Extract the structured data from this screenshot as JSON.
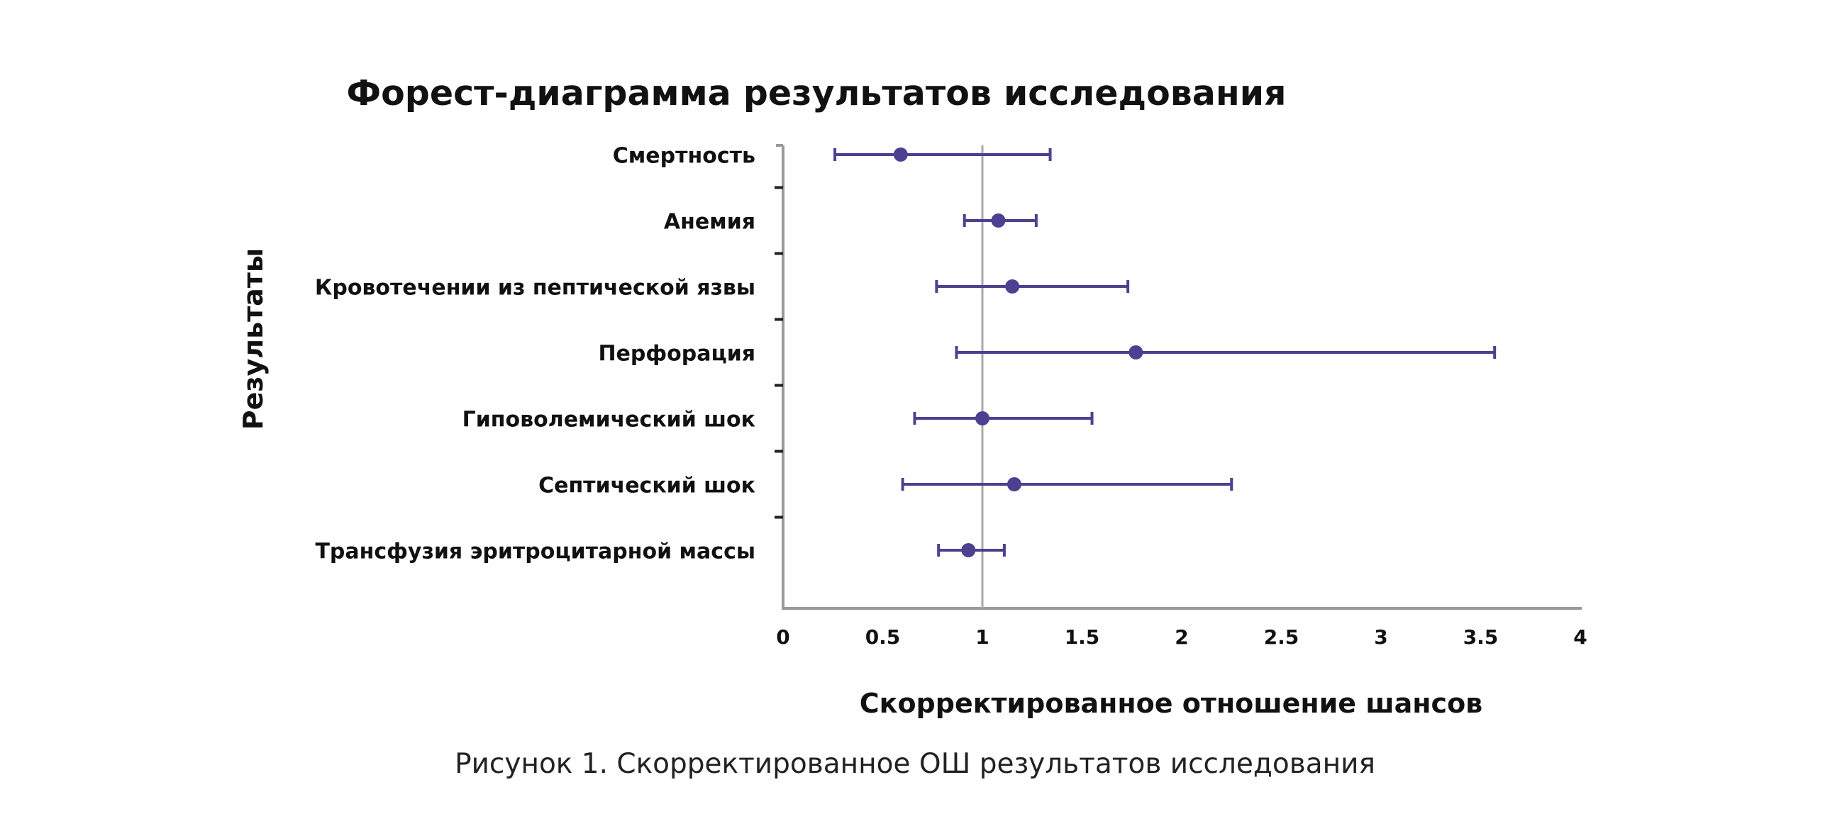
{
  "chart_data": {
    "type": "forest",
    "title": "Форест-диаграмма результатов исследования",
    "xlabel": "Скорректированное отношение шансов",
    "ylabel": "Результаты",
    "xlim": [
      0,
      4
    ],
    "xticks": [
      0,
      0.5,
      1,
      1.5,
      2,
      2.5,
      3,
      3.5,
      4
    ],
    "xtick_labels": [
      "0",
      "0.5",
      "1",
      "1.5",
      "2",
      "2.5",
      "3",
      "3.5",
      "4"
    ],
    "reference_line": 1,
    "grid": false,
    "color": "#4e4090",
    "reference_color": "#aaaaaa",
    "rows": [
      {
        "label": "Смертность",
        "or": 0.59,
        "ci_low": 0.26,
        "ci_high": 1.34
      },
      {
        "label": "Анемия",
        "or": 1.08,
        "ci_low": 0.91,
        "ci_high": 1.27
      },
      {
        "label": "Кровотечении из пептической язвы",
        "or": 1.15,
        "ci_low": 0.77,
        "ci_high": 1.73
      },
      {
        "label": "Перфорация",
        "or": 1.77,
        "ci_low": 0.87,
        "ci_high": 3.57
      },
      {
        "label": "Гиповолемический шок",
        "or": 1.0,
        "ci_low": 0.66,
        "ci_high": 1.55
      },
      {
        "label": "Септический шок",
        "or": 1.16,
        "ci_low": 0.6,
        "ci_high": 2.25
      },
      {
        "label": "Трансфузия эритроцитарной массы",
        "or": 0.93,
        "ci_low": 0.78,
        "ci_high": 1.11
      }
    ]
  },
  "caption": "Рисунок 1. Скорректированное ОШ результатов исследования"
}
